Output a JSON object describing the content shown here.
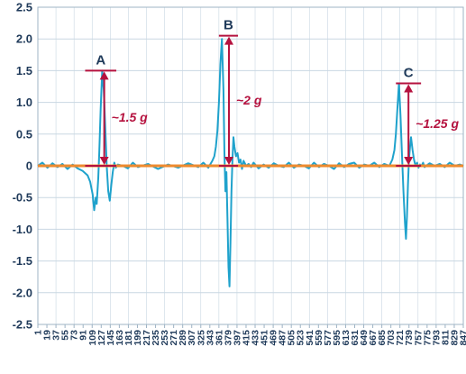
{
  "chart_data": {
    "type": "line",
    "title": "",
    "xlabel": "",
    "ylabel": "",
    "ylim": [
      -2.5,
      2.5
    ],
    "xlim": [
      1,
      847
    ],
    "y_ticks": [
      "2.5",
      "2.0",
      "1.5",
      "1.0",
      "0.5",
      "0",
      "-0.5",
      "-1.0",
      "-1.5",
      "-2.0",
      "-2.5"
    ],
    "x_ticks": [
      "1",
      "19",
      "37",
      "55",
      "73",
      "91",
      "109",
      "127",
      "145",
      "163",
      "181",
      "199",
      "217",
      "235",
      "253",
      "271",
      "289",
      "307",
      "325",
      "343",
      "361",
      "379",
      "397",
      "415",
      "433",
      "451",
      "469",
      "487",
      "505",
      "523",
      "541",
      "559",
      "577",
      "595",
      "613",
      "631",
      "649",
      "667",
      "685",
      "703",
      "721",
      "739",
      "757",
      "775",
      "793",
      "811",
      "829",
      "847"
    ],
    "grid": true,
    "colors": {
      "signal": "#1fa2cc",
      "baseline": "#ee8a2e",
      "annotation": "#b5123f",
      "grid": "#c9d7e2",
      "text": "#1f3a5a"
    },
    "series": [
      {
        "role": "acceleration",
        "x": [
          1,
          10,
          20,
          30,
          40,
          50,
          60,
          70,
          80,
          90,
          100,
          105,
          110,
          113,
          116,
          118,
          121,
          123,
          126,
          129,
          132,
          135,
          138,
          141,
          144,
          147,
          150,
          153,
          156,
          160,
          170,
          180,
          190,
          200,
          220,
          240,
          260,
          280,
          300,
          320,
          330,
          340,
          348,
          352,
          355,
          358,
          361,
          364,
          367,
          370,
          372,
          374,
          376,
          378,
          380,
          382,
          384,
          386,
          388,
          390,
          392,
          395,
          398,
          401,
          404,
          407,
          410,
          415,
          420,
          425,
          430,
          440,
          450,
          460,
          470,
          480,
          490,
          500,
          510,
          520,
          530,
          540,
          550,
          560,
          570,
          580,
          590,
          600,
          610,
          620,
          630,
          640,
          650,
          660,
          670,
          680,
          690,
          700,
          706,
          710,
          713,
          716,
          719,
          722,
          725,
          728,
          731,
          733,
          735,
          737,
          739,
          741,
          743,
          746,
          749,
          752,
          755,
          758,
          761,
          764,
          767,
          770,
          780,
          790,
          800,
          810,
          820,
          830,
          840,
          847
        ],
        "y": [
          0.0,
          0.05,
          -0.03,
          0.04,
          -0.02,
          0.03,
          -0.05,
          0.02,
          -0.04,
          -0.08,
          -0.15,
          -0.25,
          -0.45,
          -0.7,
          -0.5,
          -0.6,
          -0.2,
          0.2,
          0.9,
          1.5,
          1.2,
          0.6,
          0.0,
          -0.4,
          -0.55,
          -0.3,
          -0.1,
          0.05,
          -0.03,
          0.02,
          0.0,
          -0.04,
          0.05,
          -0.02,
          0.03,
          -0.05,
          0.02,
          -0.03,
          0.04,
          -0.02,
          0.05,
          -0.03,
          0.08,
          0.15,
          0.3,
          0.55,
          1.0,
          1.6,
          2.0,
          1.2,
          0.2,
          -0.4,
          -0.1,
          -0.8,
          -1.6,
          -1.9,
          -1.2,
          -0.4,
          0.1,
          0.45,
          0.3,
          0.15,
          0.2,
          0.05,
          0.1,
          -0.05,
          0.08,
          0.0,
          0.03,
          -0.02,
          0.05,
          -0.04,
          0.02,
          -0.03,
          0.04,
          0.0,
          -0.02,
          0.05,
          -0.03,
          0.02,
          0.0,
          -0.04,
          0.05,
          -0.02,
          0.03,
          0.0,
          -0.05,
          0.04,
          -0.02,
          0.03,
          0.05,
          -0.03,
          0.02,
          0.0,
          0.05,
          -0.02,
          0.03,
          0.0,
          0.1,
          0.25,
          0.5,
          0.9,
          1.3,
          0.8,
          0.2,
          -0.4,
          -0.9,
          -1.15,
          -0.8,
          -0.3,
          0.1,
          0.3,
          0.45,
          0.25,
          0.1,
          0.0,
          0.05,
          -0.03,
          0.02,
          0.0,
          0.05,
          -0.02,
          0.04,
          0.0,
          0.03,
          -0.02,
          0.05,
          0.0,
          0.02,
          0.0
        ]
      },
      {
        "role": "baseline",
        "x": [
          1,
          847
        ],
        "y": [
          0,
          0
        ]
      }
    ],
    "annotations": [
      {
        "peak": "A",
        "label": "~1.5 g",
        "x": 133,
        "xbar": [
          95,
          157
        ],
        "y_top": 1.5,
        "y_bottom": 0
      },
      {
        "peak": "B",
        "label": "~2 g",
        "x": 381,
        "xbar": [
          361,
          399
        ],
        "y_top": 2.05,
        "y_bottom": 0
      },
      {
        "peak": "C",
        "label": "~1.25 g",
        "x": 738,
        "xbar": [
          713,
          763
        ],
        "y_top": 1.3,
        "y_bottom": 0
      }
    ]
  }
}
